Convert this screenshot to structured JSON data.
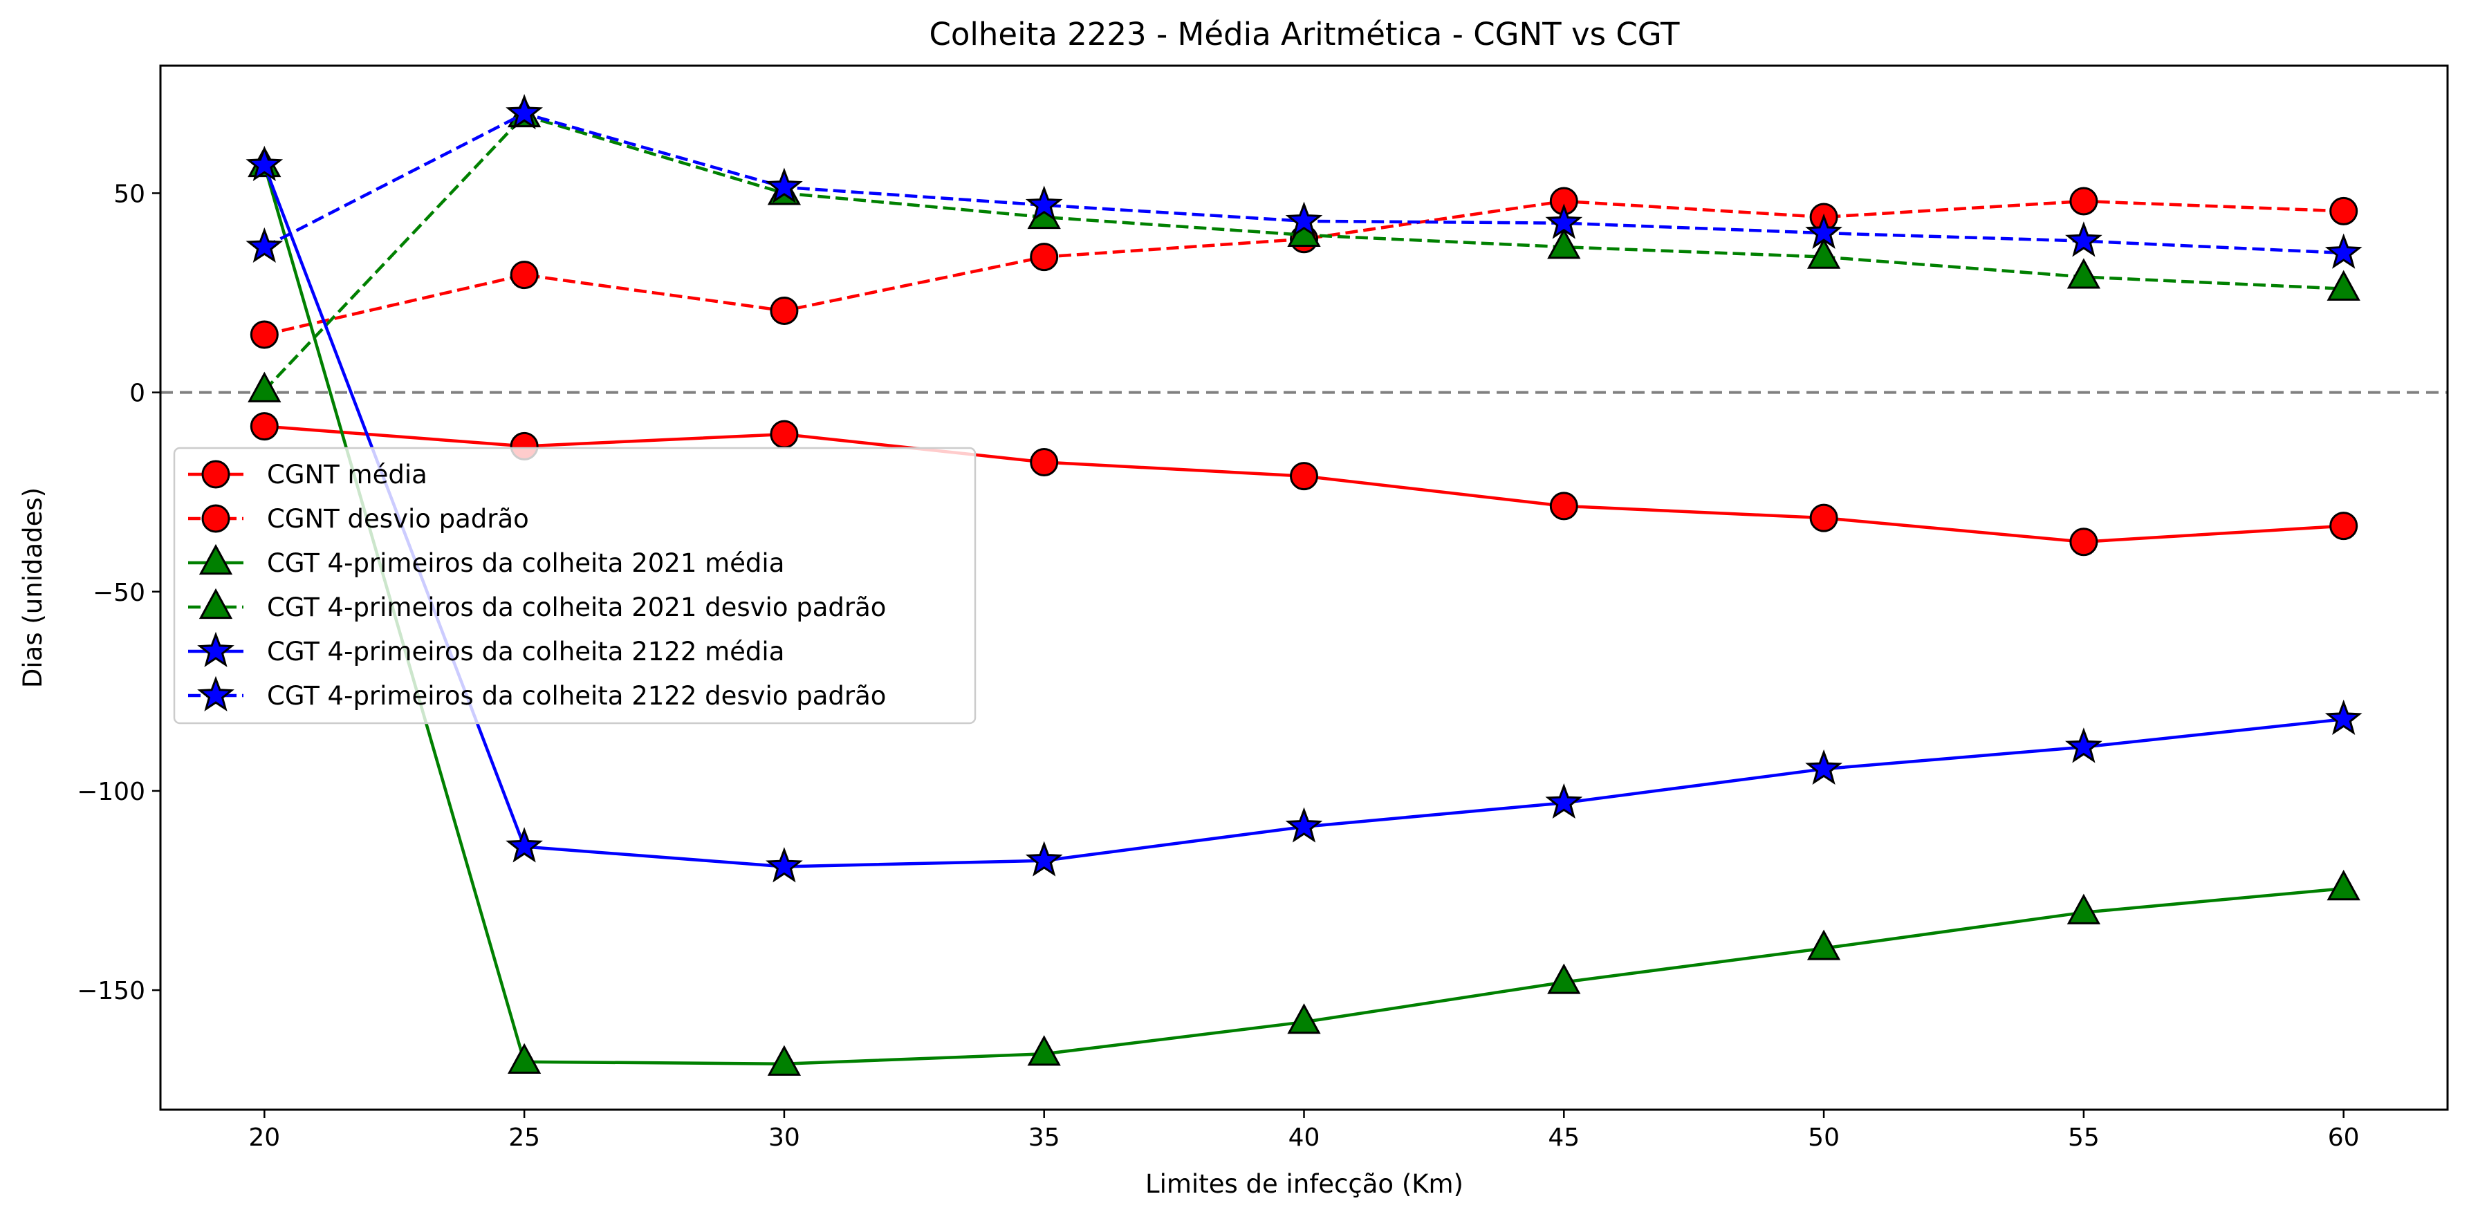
{
  "chart_data": {
    "type": "line",
    "title": "Colheita 2223 - Média Aritmética - CGNT vs CGT",
    "xlabel": "Limites de infecção (Km)",
    "ylabel": "Dias (unidades)",
    "x": [
      20,
      25,
      30,
      35,
      40,
      45,
      50,
      55,
      60
    ],
    "xlim": [
      18,
      62
    ],
    "ylim": [
      -180,
      82
    ],
    "xticks": [
      20,
      25,
      30,
      35,
      40,
      45,
      50,
      55,
      60
    ],
    "yticks": [
      -150,
      -100,
      -50,
      0,
      50
    ],
    "grid": false,
    "reference_line": {
      "y": 0,
      "style": "dashed",
      "color": "#808080"
    },
    "legend": {
      "location": "center-left"
    },
    "series": [
      {
        "name": "CGNT média",
        "color": "#ff0000",
        "line": "solid",
        "marker": "circle",
        "values": [
          -8.5,
          -13.5,
          -10.5,
          -17.5,
          -21,
          -28.5,
          -31.5,
          -37.5,
          -33.5
        ]
      },
      {
        "name": "CGNT desvio padrão",
        "color": "#ff0000",
        "line": "dashed",
        "marker": "circle",
        "values": [
          14.5,
          29.5,
          20.5,
          34,
          38.5,
          48,
          44,
          48,
          45.5
        ]
      },
      {
        "name": "CGT 4-primeiros da colheita 2021 média",
        "color": "#008000",
        "line": "solid",
        "marker": "triangle",
        "values": [
          57,
          -168,
          -168.5,
          -166,
          -158,
          -148,
          -139.5,
          -130.5,
          -124.5
        ]
      },
      {
        "name": "CGT 4-primeiros da colheita 2021 desvio padrão",
        "color": "#008000",
        "line": "dashed",
        "marker": "triangle",
        "values": [
          0.5,
          69.5,
          50,
          44,
          39.5,
          36.5,
          34,
          29,
          26
        ]
      },
      {
        "name": "CGT 4-primeiros da colheita 2122 média",
        "color": "#0000ff",
        "line": "solid",
        "marker": "star",
        "values": [
          57,
          -114,
          -119,
          -117.5,
          -109,
          -103,
          -94.5,
          -89,
          -82
        ]
      },
      {
        "name": "CGT 4-primeiros da colheita 2122 desvio padrão",
        "color": "#0000ff",
        "line": "dashed",
        "marker": "star",
        "values": [
          36.5,
          70,
          51.5,
          47,
          43,
          42.5,
          40,
          38,
          35
        ]
      }
    ]
  }
}
